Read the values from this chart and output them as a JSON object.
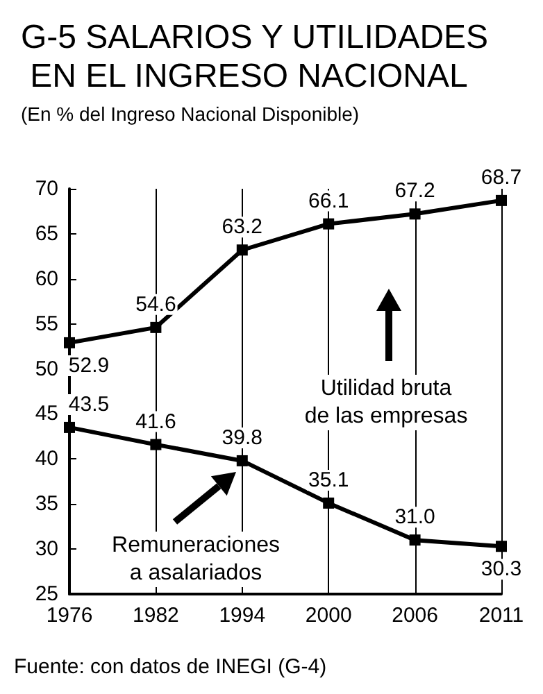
{
  "chart_data": {
    "type": "line",
    "title": "G-5 SALARIOS Y UTILIDADES EN EL INGRESO NACIONAL",
    "subtitle": "(En % del Ingreso Nacional Disponible)",
    "categories": [
      "1976",
      "1982",
      "1994",
      "2000",
      "2006",
      "2011"
    ],
    "series": [
      {
        "color": "#000000",
        "values": [
          52.9,
          54.6,
          63.2,
          66.1,
          67.2,
          68.7
        ],
        "value_labels": [
          "52.9",
          "54.6",
          "63.2",
          "66.1",
          "67.2",
          "68.7"
        ]
      },
      {
        "color": "#000000",
        "values": [
          43.5,
          41.6,
          39.8,
          35.1,
          31.0,
          30.3
        ],
        "value_labels": [
          "43.5",
          "41.6",
          "39.8",
          "35.1",
          "31.0",
          "30.3"
        ]
      }
    ],
    "ylim": [
      25,
      70
    ],
    "yticks": [
      25,
      30,
      35,
      40,
      45,
      50,
      55,
      60,
      65,
      70
    ],
    "grid": "x",
    "marker": "square",
    "line_style": "solid",
    "annotations": [
      "Utilidad bruta\nde las empresas",
      "Remuneraciones\na asalariados",
      "Fuente: con datos de INEGI (G-4)"
    ]
  }
}
